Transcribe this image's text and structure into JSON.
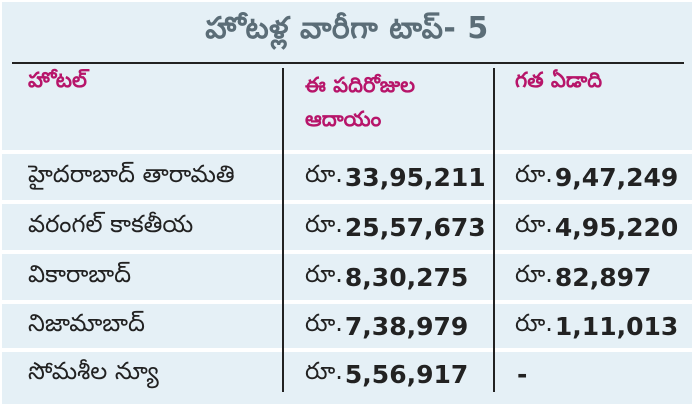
{
  "title": "హోటళ్ల వారీగా టాప్‌- 5",
  "table": {
    "headers": {
      "hotel": "హోటల్‌",
      "current_line1": "ఈ పదిరోజుల",
      "current_line2": "ఆదాయం",
      "last_year": "గత ఏడాది"
    },
    "rows": [
      {
        "name": "హైదరాబాద్‌ తారామతి",
        "current_prefix": "రూ.",
        "current_value": "33,95,211",
        "last_prefix": "రూ.",
        "last_value": "9,47,249"
      },
      {
        "name": "వరంగల్‌ కాకతీయ",
        "current_prefix": "రూ.",
        "current_value": "25,57,673",
        "last_prefix": "రూ.",
        "last_value": "4,95,220"
      },
      {
        "name": "వికారాబాద్‌",
        "current_prefix": "రూ.",
        "current_value": "8,30,275",
        "last_prefix": "రూ.",
        "last_value": "82,897"
      },
      {
        "name": "నిజామాబాద్‌",
        "current_prefix": "రూ.",
        "current_value": "7,38,979",
        "last_prefix": "రూ.",
        "last_value": "1,11,013"
      },
      {
        "name": "సోమశీల న్యూ",
        "current_prefix": "రూ.",
        "current_value": "5,56,917",
        "last_prefix": "",
        "last_value": "-"
      }
    ]
  },
  "colors": {
    "background": "#e5f0f6",
    "header_text": "#b7156a",
    "title_text": "#5b6d77",
    "rule": "#222222"
  }
}
